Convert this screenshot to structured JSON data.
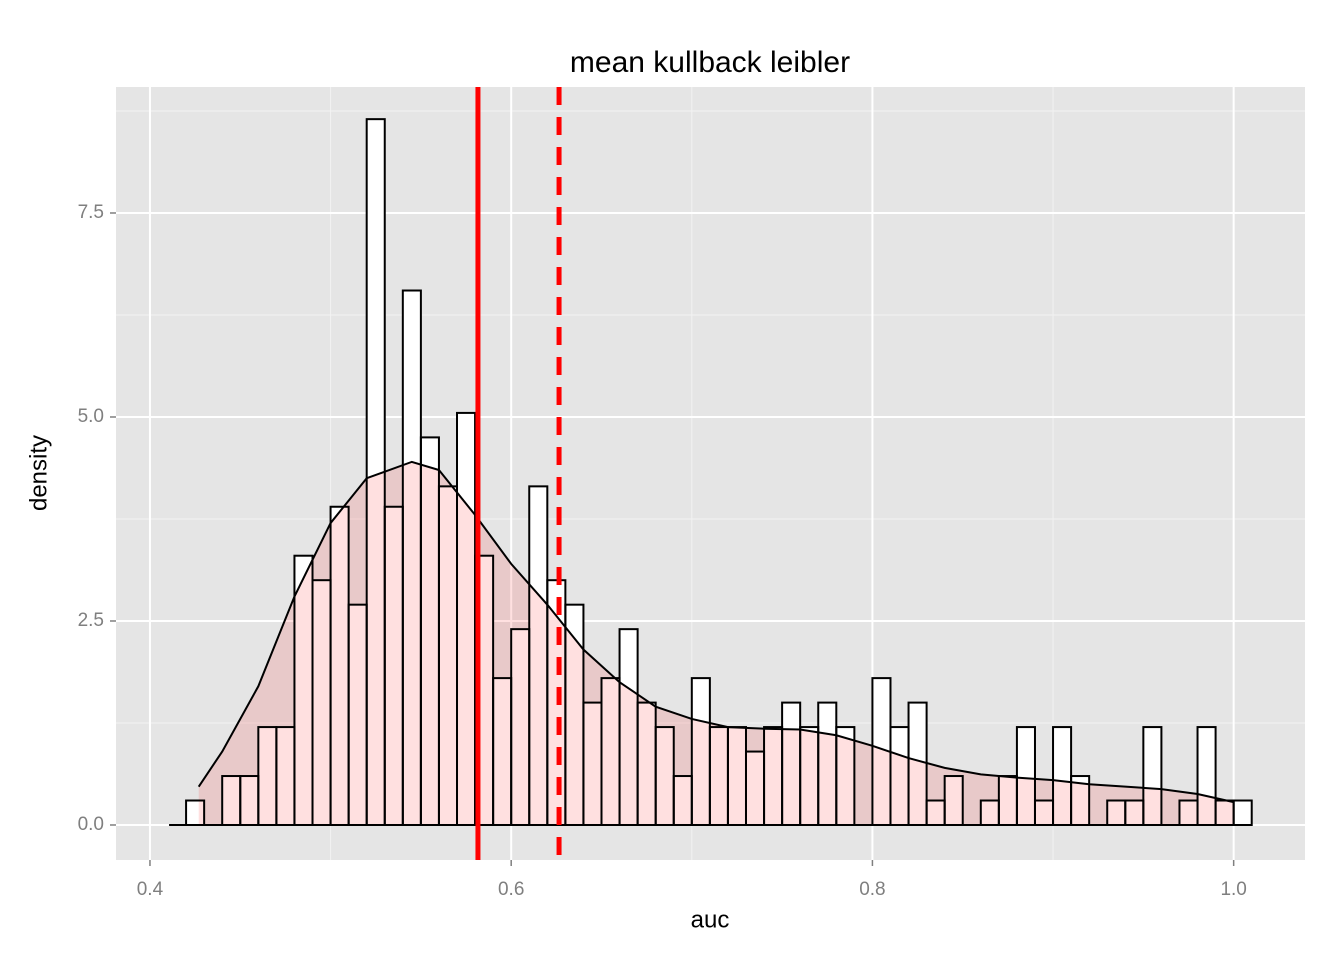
{
  "chart_data": {
    "type": "histogram",
    "title": "mean kullback leibler",
    "xlabel": "auc",
    "ylabel": "density",
    "bins": [
      0.42,
      0.43,
      0.44,
      0.45,
      0.46,
      0.47,
      0.48,
      0.49,
      0.5,
      0.51,
      0.52,
      0.53,
      0.54,
      0.55,
      0.56,
      0.57,
      0.58,
      0.59,
      0.6,
      0.61,
      0.62,
      0.63,
      0.64,
      0.65,
      0.66,
      0.67,
      0.68,
      0.69,
      0.7,
      0.71,
      0.72,
      0.73,
      0.74,
      0.75,
      0.76,
      0.77,
      0.78,
      0.79,
      0.8,
      0.81,
      0.82,
      0.83,
      0.84,
      0.85,
      0.86,
      0.87,
      0.88,
      0.89,
      0.9,
      0.91,
      0.92,
      0.93,
      0.94,
      0.95,
      0.96,
      0.97,
      0.98,
      0.99,
      1.0,
      1.01
    ],
    "values": [
      0.3,
      0,
      0.6,
      0.6,
      1.2,
      1.2,
      3.3,
      3.0,
      3.9,
      2.7,
      8.65,
      3.9,
      6.55,
      4.75,
      4.15,
      5.05,
      3.3,
      1.8,
      2.4,
      4.15,
      3.0,
      2.7,
      1.5,
      1.8,
      2.4,
      1.5,
      1.2,
      0.6,
      1.8,
      1.2,
      1.2,
      0.9,
      1.2,
      1.5,
      1.2,
      1.5,
      1.2,
      0,
      1.8,
      1.2,
      1.5,
      0.3,
      0.6,
      0,
      0.3,
      0.6,
      1.2,
      0.3,
      1.2,
      0.6,
      0,
      0.3,
      0.3,
      1.2,
      0,
      0.3,
      1.2,
      0.3,
      0.3
    ],
    "bar_fill": "#ffffff",
    "bar_edge": "#000000",
    "density": {
      "x": [
        0.427,
        0.44,
        0.46,
        0.48,
        0.5,
        0.52,
        0.545,
        0.56,
        0.58,
        0.6,
        0.62,
        0.64,
        0.66,
        0.68,
        0.7,
        0.72,
        0.74,
        0.76,
        0.78,
        0.8,
        0.82,
        0.84,
        0.86,
        0.88,
        0.9,
        0.92,
        0.94,
        0.96,
        0.98,
        1.0
      ],
      "values": [
        0.47,
        0.9,
        1.7,
        2.8,
        3.7,
        4.25,
        4.45,
        4.35,
        3.8,
        3.2,
        2.7,
        2.15,
        1.75,
        1.45,
        1.3,
        1.2,
        1.18,
        1.17,
        1.1,
        0.97,
        0.82,
        0.7,
        0.62,
        0.58,
        0.55,
        0.5,
        0.47,
        0.44,
        0.38,
        0.28
      ],
      "fill": "rgba(255,0,0,0.12)",
      "color": "#000000"
    },
    "vlines": [
      {
        "value": 0.5816,
        "style": "solid"
      },
      {
        "value": 0.6265,
        "style": "dashed"
      }
    ],
    "vline_color": "#ff0000",
    "xlim": [
      0.3812,
      1.0395
    ],
    "ylim": [
      -0.429,
      9.044
    ],
    "xticks": [
      0.4,
      0.6,
      0.8,
      {
        "value": 1.0,
        "label": "1.0"
      }
    ],
    "yticks": [
      {
        "value": 0,
        "label": "0.0"
      },
      2.5,
      {
        "value": 5,
        "label": "5.0"
      },
      7.5
    ],
    "x_minor_grid": [
      0.5,
      0.7,
      0.9
    ],
    "y_minor_grid": [
      1.25,
      3.75,
      6.25,
      8.75
    ],
    "grid": true,
    "panel_color": "#e5e5e5"
  }
}
